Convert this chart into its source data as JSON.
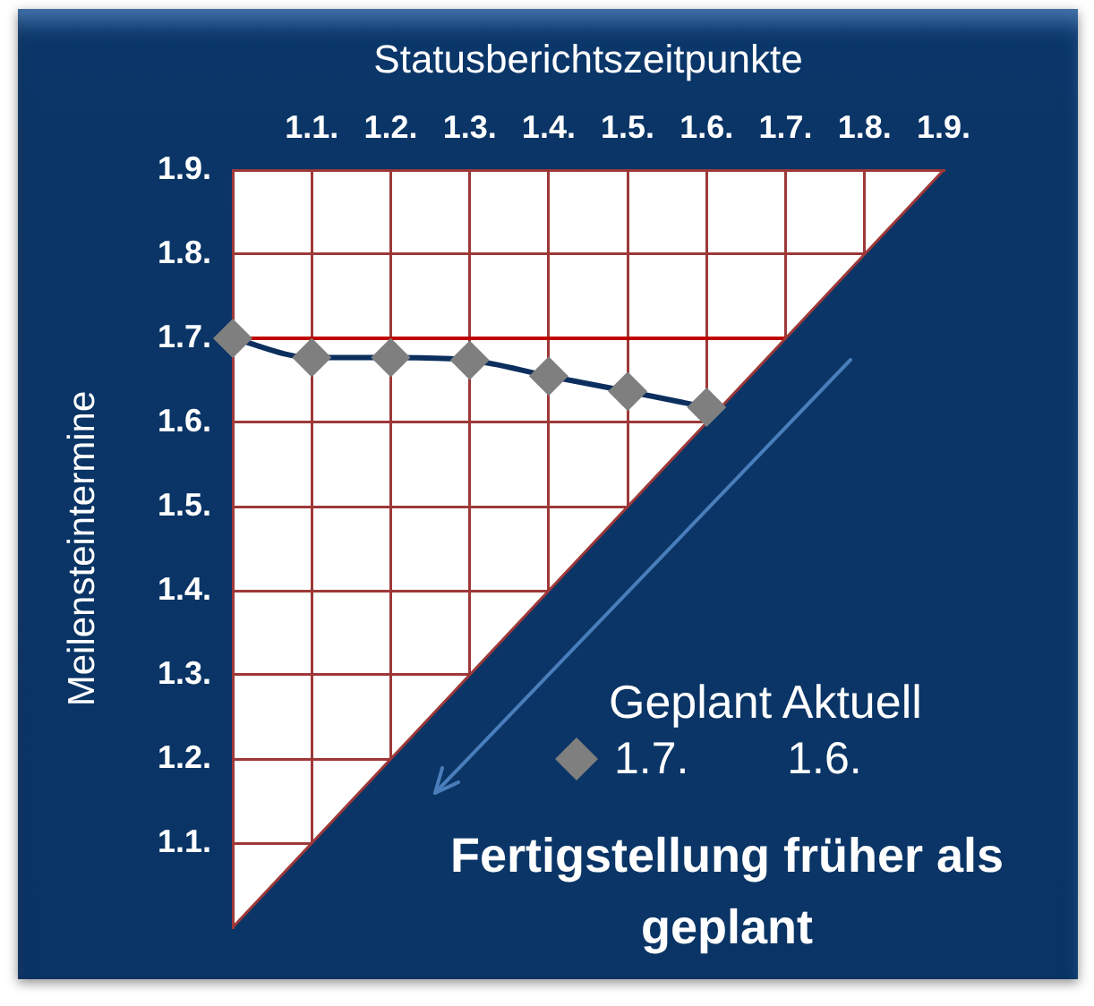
{
  "chart_data": {
    "type": "line",
    "xlabel": "Statusberichtszeitpunkte",
    "ylabel": "Meilensteintermine",
    "categories": [
      null,
      "1.1.",
      "1.2.",
      "1.3.",
      "1.4.",
      "1.5.",
      "1.6.",
      "1.7.",
      "1.8.",
      "1.9."
    ],
    "ylim": [
      1.0,
      1.9
    ],
    "yticks": [
      {
        "value": 1.0,
        "label": null
      },
      {
        "value": 1.1,
        "label": "1.1."
      },
      {
        "value": 1.2,
        "label": "1.2."
      },
      {
        "value": 1.3,
        "label": "1.3."
      },
      {
        "value": 1.4,
        "label": "1.4."
      },
      {
        "value": 1.5,
        "label": "1.5."
      },
      {
        "value": 1.6,
        "label": "1.6."
      },
      {
        "value": 1.7,
        "label": "1.7."
      },
      {
        "value": 1.8,
        "label": "1.8."
      },
      {
        "value": 1.9,
        "label": "1.9."
      }
    ],
    "series": [
      {
        "type": "area",
        "color": "#0a3566",
        "values": [
          1.0,
          1.1,
          1.2,
          1.3,
          1.4,
          1.5,
          1.6,
          1.7,
          1.8,
          1.9
        ]
      },
      {
        "color": "#0c2f5e",
        "values": [
          1.7,
          1.677,
          1.677,
          1.674,
          1.655,
          1.637,
          1.618,
          null,
          null,
          null
        ]
      },
      {
        "type": "scatter",
        "name": "1.7. 1.6.",
        "color": "#7f7f7f",
        "marker": "diamond",
        "values": [
          1.7,
          1.677,
          1.677,
          1.674,
          1.655,
          1.637,
          1.618,
          null,
          null,
          null
        ]
      }
    ],
    "ref_lines": [
      {
        "axis": "y",
        "value": 1.7,
        "color": "#c00000"
      }
    ],
    "legend_title": "Geplant Aktuell",
    "legend": "bottom right",
    "grid": true,
    "annotations": [
      "Fertigstellung früher als geplant"
    ]
  }
}
